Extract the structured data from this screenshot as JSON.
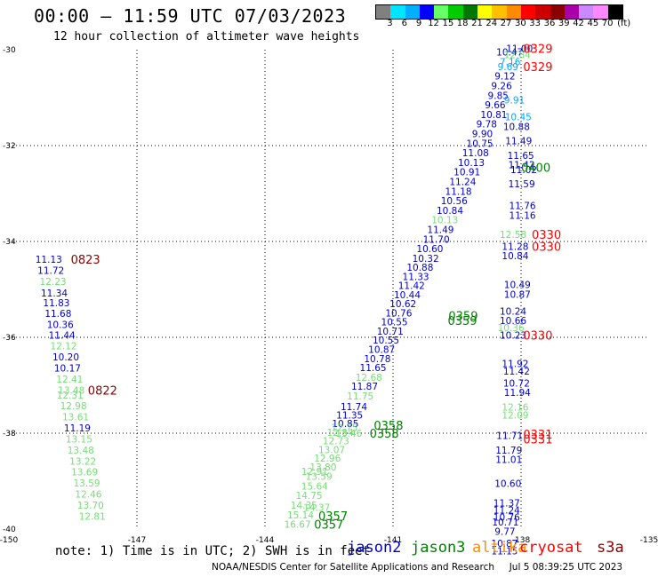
{
  "header": {
    "title": "00:00 – 11:59 UTC 07/03/2023",
    "subtitle": "12 hour collection of altimeter wave heights",
    "scale_unit": "(ft)",
    "scale_labels": [
      "3",
      "6",
      "9",
      "12",
      "15",
      "18",
      "21",
      "24",
      "27",
      "30",
      "33",
      "36",
      "39",
      "42",
      "45",
      "70"
    ],
    "scale_colors": [
      "#808080",
      "#00e5ff",
      "#00b0ff",
      "#0000ff",
      "#66ff66",
      "#00cc00",
      "#007700",
      "#ffff00",
      "#ffc000",
      "#ff8c00",
      "#ff0000",
      "#cc0000",
      "#8b0000",
      "#aa00aa",
      "#cc88ff",
      "#ff88ff",
      "#000000"
    ]
  },
  "footer": {
    "note": "note:  1) Time is in UTC; 2) SWH is in feet",
    "satellites": [
      {
        "name": "jason2",
        "color": "#0000cc"
      },
      {
        "name": "jason3",
        "color": "#008000"
      },
      {
        "name": "altika",
        "color": "#ff8c00"
      },
      {
        "name": "cryosat",
        "color": "#ff0000"
      },
      {
        "name": "s3a",
        "color": "#8b0000"
      }
    ],
    "credit": "NOAA/NESDIS Center for Satellite Applications and Research",
    "generated": "Jul  5 08:39:25 UTC 2023"
  },
  "map": {
    "xticks": [
      "-150",
      "-147",
      "-144",
      "-141",
      "-138",
      "-135"
    ],
    "yticks": [
      "-30",
      "-32",
      "-34",
      "-36",
      "-38",
      "-40"
    ],
    "colors": {
      "dkblue": "#0000cc",
      "ltgreen": "#77dd77",
      "green": "#008000",
      "cyan": "#00aaff",
      "red": "#ff0000",
      "maroon": "#8b0000"
    },
    "points": [
      {
        "lon": -149.38,
        "lat": -34.37,
        "t": "11.13",
        "c": "dkblue"
      },
      {
        "lon": -149.33,
        "lat": -34.6,
        "t": "11.72",
        "c": "dkblue"
      },
      {
        "lon": -149.28,
        "lat": -34.83,
        "t": "12.23",
        "c": "ltgreen"
      },
      {
        "lon": -149.25,
        "lat": -35.07,
        "t": "11.34",
        "c": "dkblue"
      },
      {
        "lon": -149.2,
        "lat": -35.28,
        "t": "11.83",
        "c": "dkblue"
      },
      {
        "lon": -149.16,
        "lat": -35.5,
        "t": "11.68",
        "c": "dkblue"
      },
      {
        "lon": -149.11,
        "lat": -35.73,
        "t": "10.36",
        "c": "dkblue"
      },
      {
        "lon": -149.07,
        "lat": -35.95,
        "t": "11.44",
        "c": "dkblue"
      },
      {
        "lon": -149.03,
        "lat": -36.18,
        "t": "12.12",
        "c": "ltgreen"
      },
      {
        "lon": -148.98,
        "lat": -36.41,
        "t": "10.20",
        "c": "dkblue"
      },
      {
        "lon": -148.94,
        "lat": -36.64,
        "t": "10.17",
        "c": "dkblue"
      },
      {
        "lon": -148.89,
        "lat": -36.87,
        "t": "12.41",
        "c": "ltgreen"
      },
      {
        "lon": -148.85,
        "lat": -37.1,
        "t": "13.48",
        "c": "ltgreen"
      },
      {
        "lon": -148.88,
        "lat": -37.2,
        "t": "12.31",
        "c": "ltgreen"
      },
      {
        "lon": -148.8,
        "lat": -37.43,
        "t": "12.98",
        "c": "ltgreen"
      },
      {
        "lon": -148.75,
        "lat": -37.66,
        "t": "13.61",
        "c": "ltgreen"
      },
      {
        "lon": -148.71,
        "lat": -37.89,
        "t": "11.19",
        "c": "dkblue"
      },
      {
        "lon": -148.67,
        "lat": -38.12,
        "t": "13.15",
        "c": "ltgreen"
      },
      {
        "lon": -148.63,
        "lat": -38.35,
        "t": "13.48",
        "c": "ltgreen"
      },
      {
        "lon": -148.58,
        "lat": -38.58,
        "t": "13.22",
        "c": "ltgreen"
      },
      {
        "lon": -148.54,
        "lat": -38.81,
        "t": "13.69",
        "c": "ltgreen"
      },
      {
        "lon": -148.49,
        "lat": -39.04,
        "t": "13.59",
        "c": "ltgreen"
      },
      {
        "lon": -148.45,
        "lat": -39.27,
        "t": "12.46",
        "c": "ltgreen"
      },
      {
        "lon": -148.4,
        "lat": -39.5,
        "t": "13.70",
        "c": "ltgreen"
      },
      {
        "lon": -148.36,
        "lat": -39.73,
        "t": "12.81",
        "c": "ltgreen"
      },
      {
        "lon": -143.48,
        "lat": -39.7,
        "t": "15.14",
        "c": "ltgreen"
      },
      {
        "lon": -143.55,
        "lat": -39.9,
        "t": "16.67",
        "c": "ltgreen"
      },
      {
        "lon": -143.4,
        "lat": -39.5,
        "t": "14.35",
        "c": "ltgreen"
      },
      {
        "lon": -143.28,
        "lat": -39.3,
        "t": "14.75",
        "c": "ltgreen"
      },
      {
        "lon": -143.15,
        "lat": -39.1,
        "t": "15.64",
        "c": "ltgreen"
      },
      {
        "lon": -143.05,
        "lat": -38.9,
        "t": "13.59",
        "c": "ltgreen"
      },
      {
        "lon": -142.95,
        "lat": -38.7,
        "t": "13.80",
        "c": "ltgreen"
      },
      {
        "lon": -142.85,
        "lat": -38.52,
        "t": "12.96",
        "c": "ltgreen"
      },
      {
        "lon": -142.75,
        "lat": -38.34,
        "t": "13.07",
        "c": "ltgreen"
      },
      {
        "lon": -142.65,
        "lat": -38.16,
        "t": "12.73",
        "c": "ltgreen"
      },
      {
        "lon": -142.55,
        "lat": -37.98,
        "t": "12.84",
        "c": "ltgreen"
      },
      {
        "lon": -142.43,
        "lat": -37.8,
        "t": "10.85",
        "c": "dkblue"
      },
      {
        "lon": -142.33,
        "lat": -37.62,
        "t": "11.35",
        "c": "dkblue"
      },
      {
        "lon": -142.23,
        "lat": -37.44,
        "t": "11.74",
        "c": "dkblue"
      },
      {
        "lon": -142.08,
        "lat": -37.22,
        "t": "11.75",
        "c": "ltgreen"
      },
      {
        "lon": -141.98,
        "lat": -37.02,
        "t": "11.87",
        "c": "dkblue"
      },
      {
        "lon": -141.88,
        "lat": -36.83,
        "t": "12.68",
        "c": "ltgreen"
      },
      {
        "lon": -141.78,
        "lat": -36.63,
        "t": "11.65",
        "c": "dkblue"
      },
      {
        "lon": -141.68,
        "lat": -36.44,
        "t": "10.78",
        "c": "dkblue"
      },
      {
        "lon": -141.58,
        "lat": -36.25,
        "t": "10.87",
        "c": "dkblue"
      },
      {
        "lon": -141.48,
        "lat": -36.06,
        "t": "10.55",
        "c": "dkblue"
      },
      {
        "lon": -141.38,
        "lat": -35.87,
        "t": "10.71",
        "c": "dkblue"
      },
      {
        "lon": -141.28,
        "lat": -35.68,
        "t": "10.55",
        "c": "dkblue"
      },
      {
        "lon": -141.18,
        "lat": -35.49,
        "t": "10.76",
        "c": "dkblue"
      },
      {
        "lon": -141.08,
        "lat": -35.3,
        "t": "10.62",
        "c": "dkblue"
      },
      {
        "lon": -140.98,
        "lat": -35.11,
        "t": "10.44",
        "c": "dkblue"
      },
      {
        "lon": -140.88,
        "lat": -34.92,
        "t": "11.42",
        "c": "dkblue"
      },
      {
        "lon": -140.78,
        "lat": -34.73,
        "t": "11.33",
        "c": "dkblue"
      },
      {
        "lon": -140.68,
        "lat": -34.54,
        "t": "10.88",
        "c": "dkblue"
      },
      {
        "lon": -140.55,
        "lat": -34.35,
        "t": "10.32",
        "c": "dkblue"
      },
      {
        "lon": -140.45,
        "lat": -34.15,
        "t": "10.60",
        "c": "dkblue"
      },
      {
        "lon": -140.3,
        "lat": -33.95,
        "t": "11.70",
        "c": "dkblue"
      },
      {
        "lon": -140.2,
        "lat": -33.75,
        "t": "11.49",
        "c": "dkblue"
      },
      {
        "lon": -140.1,
        "lat": -33.55,
        "t": "10.13",
        "c": "ltgreen"
      },
      {
        "lon": -139.98,
        "lat": -33.35,
        "t": "10.84",
        "c": "dkblue"
      },
      {
        "lon": -139.88,
        "lat": -33.15,
        "t": "10.56",
        "c": "dkblue"
      },
      {
        "lon": -139.78,
        "lat": -32.95,
        "t": "11.18",
        "c": "dkblue"
      },
      {
        "lon": -139.68,
        "lat": -32.75,
        "t": "11.24",
        "c": "dkblue"
      },
      {
        "lon": -139.58,
        "lat": -32.55,
        "t": "10.91",
        "c": "dkblue"
      },
      {
        "lon": -139.48,
        "lat": -32.35,
        "t": "10.13",
        "c": "dkblue"
      },
      {
        "lon": -139.38,
        "lat": -32.15,
        "t": "11.08",
        "c": "dkblue"
      },
      {
        "lon": -139.28,
        "lat": -31.95,
        "t": "10.75",
        "c": "dkblue"
      },
      {
        "lon": -139.15,
        "lat": -31.75,
        "t": "9.90",
        "c": "dkblue"
      },
      {
        "lon": -139.05,
        "lat": -31.55,
        "t": "9.78",
        "c": "dkblue"
      },
      {
        "lon": -138.95,
        "lat": -31.35,
        "t": "10.81",
        "c": "dkblue"
      },
      {
        "lon": -138.85,
        "lat": -31.15,
        "t": "9.66",
        "c": "dkblue"
      },
      {
        "lon": -138.78,
        "lat": -30.95,
        "t": "9.85",
        "c": "dkblue"
      },
      {
        "lon": -138.7,
        "lat": -30.75,
        "t": "9.26",
        "c": "dkblue"
      },
      {
        "lon": -138.62,
        "lat": -30.55,
        "t": "9.12",
        "c": "dkblue"
      },
      {
        "lon": -138.55,
        "lat": -30.35,
        "t": "9.69",
        "c": "cyan"
      },
      {
        "lon": -138.5,
        "lat": -30.25,
        "t": "7.16",
        "c": "cyan"
      },
      {
        "lon": -138.58,
        "lat": -30.05,
        "t": "10.47",
        "c": "dkblue"
      },
      {
        "lon": -138.4,
        "lat": -30.1,
        "t": "12.84",
        "c": "ltgreen"
      },
      {
        "lon": -138.35,
        "lat": -29.97,
        "t": "11.00",
        "c": "dkblue"
      },
      {
        "lon": -138.4,
        "lat": -31.05,
        "t": "9.91",
        "c": "cyan"
      },
      {
        "lon": -138.38,
        "lat": -31.4,
        "t": "10.45",
        "c": "cyan"
      },
      {
        "lon": -138.42,
        "lat": -31.6,
        "t": "10.88",
        "c": "dkblue"
      },
      {
        "lon": -138.37,
        "lat": -31.9,
        "t": "11.49",
        "c": "dkblue"
      },
      {
        "lon": -138.32,
        "lat": -32.2,
        "t": "11.65",
        "c": "dkblue"
      },
      {
        "lon": -138.3,
        "lat": -32.4,
        "t": "11.42",
        "c": "dkblue"
      },
      {
        "lon": -138.25,
        "lat": -32.5,
        "t": "11.02",
        "c": "dkblue"
      },
      {
        "lon": -138.3,
        "lat": -32.8,
        "t": "11.59",
        "c": "dkblue"
      },
      {
        "lon": -138.28,
        "lat": -33.25,
        "t": "11.76",
        "c": "dkblue"
      },
      {
        "lon": -138.28,
        "lat": -33.45,
        "t": "11.16",
        "c": "dkblue"
      },
      {
        "lon": -138.5,
        "lat": -33.85,
        "t": "12.58",
        "c": "ltgreen"
      },
      {
        "lon": -138.45,
        "lat": -34.1,
        "t": "11.28",
        "c": "dkblue"
      },
      {
        "lon": -138.45,
        "lat": -34.3,
        "t": "10.84",
        "c": "dkblue"
      },
      {
        "lon": -138.4,
        "lat": -34.9,
        "t": "10.49",
        "c": "dkblue"
      },
      {
        "lon": -138.4,
        "lat": -35.1,
        "t": "10.87",
        "c": "dkblue"
      },
      {
        "lon": -138.5,
        "lat": -35.45,
        "t": "10.24",
        "c": "dkblue"
      },
      {
        "lon": -138.5,
        "lat": -35.65,
        "t": "10.66",
        "c": "dkblue"
      },
      {
        "lon": -138.55,
        "lat": -35.8,
        "t": "10.36",
        "c": "ltgreen"
      },
      {
        "lon": -138.5,
        "lat": -35.95,
        "t": "10.23",
        "c": "dkblue"
      },
      {
        "lon": -138.45,
        "lat": -36.55,
        "t": "11.92",
        "c": "dkblue"
      },
      {
        "lon": -138.42,
        "lat": -36.7,
        "t": "11.42",
        "c": "dkblue"
      },
      {
        "lon": -138.42,
        "lat": -36.95,
        "t": "10.72",
        "c": "dkblue"
      },
      {
        "lon": -138.4,
        "lat": -37.15,
        "t": "11.94",
        "c": "dkblue"
      },
      {
        "lon": -138.45,
        "lat": -37.45,
        "t": "12.16",
        "c": "ltgreen"
      },
      {
        "lon": -138.45,
        "lat": -37.62,
        "t": "12.09",
        "c": "ltgreen"
      },
      {
        "lon": -138.58,
        "lat": -38.05,
        "t": "11.71",
        "c": "dkblue"
      },
      {
        "lon": -138.6,
        "lat": -38.35,
        "t": "11.79",
        "c": "dkblue"
      },
      {
        "lon": -138.6,
        "lat": -38.55,
        "t": "11.01",
        "c": "dkblue"
      },
      {
        "lon": -138.62,
        "lat": -39.05,
        "t": "10.60",
        "c": "dkblue"
      },
      {
        "lon": -138.65,
        "lat": -39.45,
        "t": "11.37",
        "c": "dkblue"
      },
      {
        "lon": -138.65,
        "lat": -39.6,
        "t": "11.24",
        "c": "dkblue"
      },
      {
        "lon": -138.65,
        "lat": -39.75,
        "t": "10.76",
        "c": "dkblue"
      },
      {
        "lon": -138.68,
        "lat": -39.85,
        "t": "10.71",
        "c": "dkblue"
      },
      {
        "lon": -138.62,
        "lat": -40.05,
        "t": "9.77",
        "c": "dkblue"
      },
      {
        "lon": -138.7,
        "lat": -40.3,
        "t": "10.87",
        "c": "dkblue"
      },
      {
        "lon": -138.7,
        "lat": -40.45,
        "t": "11.15",
        "c": "dkblue"
      },
      {
        "lon": -142.45,
        "lat": -37.88,
        "t": "12.75",
        "c": "ltgreen"
      },
      {
        "lon": -142.35,
        "lat": -38.0,
        "t": "13.46",
        "c": "ltgreen"
      },
      {
        "lon": -143.1,
        "lat": -39.55,
        "t": "14.37",
        "c": "ltgreen"
      },
      {
        "lon": -143.15,
        "lat": -38.8,
        "t": "12.91",
        "c": "ltgreen"
      }
    ],
    "times": [
      {
        "lon": -148.55,
        "lat": -34.37,
        "t": "0823",
        "c": "maroon"
      },
      {
        "lon": -148.15,
        "lat": -37.1,
        "t": "0822",
        "c": "maroon"
      },
      {
        "lon": -137.95,
        "lat": -29.97,
        "t": "0329",
        "c": "red"
      },
      {
        "lon": -137.95,
        "lat": -30.35,
        "t": "0329",
        "c": "red"
      },
      {
        "lon": -138.0,
        "lat": -32.45,
        "t": "0400",
        "c": "green"
      },
      {
        "lon": -137.75,
        "lat": -33.85,
        "t": "0330",
        "c": "red"
      },
      {
        "lon": -137.75,
        "lat": -34.1,
        "t": "0330",
        "c": "red"
      },
      {
        "lon": -139.7,
        "lat": -35.55,
        "t": "0359",
        "c": "green"
      },
      {
        "lon": -139.72,
        "lat": -35.65,
        "t": "0359",
        "c": "green"
      },
      {
        "lon": -137.95,
        "lat": -35.95,
        "t": "0330",
        "c": "red"
      },
      {
        "lon": -137.95,
        "lat": -38.02,
        "t": "0331",
        "c": "red"
      },
      {
        "lon": -137.95,
        "lat": -38.12,
        "t": "0331",
        "c": "red"
      },
      {
        "lon": -141.45,
        "lat": -37.83,
        "t": "0358",
        "c": "green"
      },
      {
        "lon": -141.55,
        "lat": -38.0,
        "t": "0358",
        "c": "green"
      },
      {
        "lon": -142.75,
        "lat": -39.72,
        "t": "0357",
        "c": "green"
      },
      {
        "lon": -142.85,
        "lat": -39.9,
        "t": "0357",
        "c": "green"
      }
    ]
  }
}
